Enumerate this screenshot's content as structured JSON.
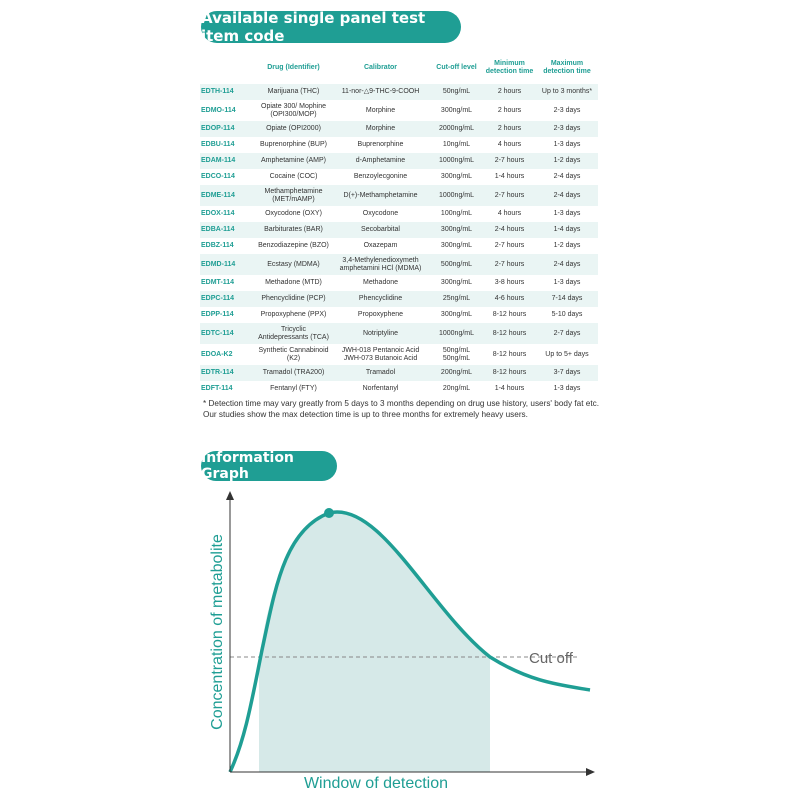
{
  "section1_title": "Available single panel test item code",
  "table": {
    "headers": [
      "",
      "Drug (Identifier)",
      "Calibrator",
      "Cut-off level",
      "Minimum\ndetection time",
      "Maximum\ndetection time"
    ],
    "rows": [
      {
        "code": "EDTH-114",
        "drug": "Marijuana (THC)",
        "calibrator": "11-nor-△9-THC-9-COOH",
        "cutoff": "50ng/mL",
        "min": "2 hours",
        "max": "Up to 3 months*"
      },
      {
        "code": "EDMO-114",
        "drug": "Opiate 300/ Mophine\n(OPI300/MOP)",
        "calibrator": "Morphine",
        "cutoff": "300ng/mL",
        "min": "2 hours",
        "max": "2-3 days"
      },
      {
        "code": "EDOP-114",
        "drug": "Opiate (OPI2000)",
        "calibrator": "Morphine",
        "cutoff": "2000ng/mL",
        "min": "2 hours",
        "max": "2-3 days"
      },
      {
        "code": "EDBU-114",
        "drug": "Buprenorphine (BUP)",
        "calibrator": "Buprenorphine",
        "cutoff": "10ng/mL",
        "min": "4 hours",
        "max": "1-3 days"
      },
      {
        "code": "EDAM-114",
        "drug": "Amphetamine (AMP)",
        "calibrator": "d-Amphetamine",
        "cutoff": "1000ng/mL",
        "min": "2-7 hours",
        "max": "1-2 days"
      },
      {
        "code": "EDCO-114",
        "drug": "Cocaine (COC)",
        "calibrator": "Benzoylecgonine",
        "cutoff": "300ng/mL",
        "min": "1-4 hours",
        "max": "2-4 days"
      },
      {
        "code": "EDME-114",
        "drug": "Methamphetamine\n(MET/mAMP)",
        "calibrator": "D(+)-Methamphetamine",
        "cutoff": "1000ng/mL",
        "min": "2-7 hours",
        "max": "2-4 days"
      },
      {
        "code": "EDOX-114",
        "drug": "Oxycodone (OXY)",
        "calibrator": "Oxycodone",
        "cutoff": "100ng/mL",
        "min": "4 hours",
        "max": "1-3 days"
      },
      {
        "code": "EDBA-114",
        "drug": "Barbiturates (BAR)",
        "calibrator": "Secobarbital",
        "cutoff": "300ng/mL",
        "min": "2-4 hours",
        "max": "1-4 days"
      },
      {
        "code": "EDBZ-114",
        "drug": "Benzodiazepine (BZO)",
        "calibrator": "Oxazepam",
        "cutoff": "300ng/mL",
        "min": "2-7 hours",
        "max": "1-2 days"
      },
      {
        "code": "EDMD-114",
        "drug": "Ecstasy (MDMA)",
        "calibrator": "3,4-Methylenedioxymeth\namphetamini HCl (MDMA)",
        "cutoff": "500ng/mL",
        "min": "2-7 hours",
        "max": "2-4 days"
      },
      {
        "code": "EDMT-114",
        "drug": "Methadone (MTD)",
        "calibrator": "Methadone",
        "cutoff": "300ng/mL",
        "min": "3-8 hours",
        "max": "1-3 days"
      },
      {
        "code": "EDPC-114",
        "drug": "Phencyclidine (PCP)",
        "calibrator": "Phencyclidine",
        "cutoff": "25ng/mL",
        "min": "4-6 hours",
        "max": "7-14 days"
      },
      {
        "code": "EDPP-114",
        "drug": "Propoxyphene (PPX)",
        "calibrator": "Propoxyphene",
        "cutoff": "300ng/mL",
        "min": "8-12 hours",
        "max": "5-10 days"
      },
      {
        "code": "EDTC-114",
        "drug": "Tricyclic\nAntidepressants (TCA)",
        "calibrator": "Notriptyline",
        "cutoff": "1000ng/mL",
        "min": "8-12 hours",
        "max": "2-7 days"
      },
      {
        "code": "EDOA-K2",
        "drug": "Synthetic Cannabinoid\n(K2)",
        "calibrator": "JWH-018 Pentanoic Acid\nJWH-073 Butanoic Acid",
        "cutoff": "50ng/mL\n50ng/mL",
        "min": "8-12 hours",
        "max": "Up to 5+ days"
      },
      {
        "code": "EDTR-114",
        "drug": "Tramadol (TRA200)",
        "calibrator": "Tramadol",
        "cutoff": "200ng/mL",
        "min": "8-12 hours",
        "max": "3-7 days"
      },
      {
        "code": "EDFT-114",
        "drug": "Fentanyl (FTY)",
        "calibrator": "Norfentanyl",
        "cutoff": "20ng/mL",
        "min": "1-4 hours",
        "max": "1-3 days"
      }
    ]
  },
  "footnote": "* Detection time may vary greatly from 5 days to 3 months depending on drug use history, users' body fat etc. Our studies show the max detection time is up to three months for extremely heavy users.",
  "section2_title": "Information Graph",
  "graph": {
    "ylabel": "Concentration of metabolite",
    "xlabel": "Window of detection",
    "cutoff_label": "Cut off",
    "colors": {
      "accent": "#1f9e94",
      "fill": "#d6e9e8",
      "axis": "#333333"
    }
  }
}
